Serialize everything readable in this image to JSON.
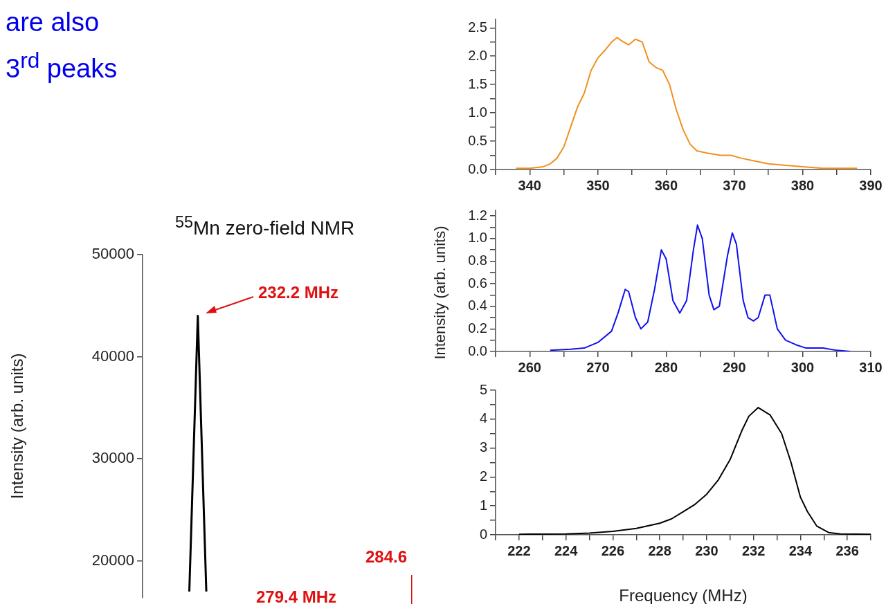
{
  "chart_data": [
    {
      "type": "line",
      "title": "$^{55}$Mn zero-field NMR",
      "ylabel": "Intensity (arb. units)",
      "categories": [
        null,
        null,
        null
      ],
      "series": [
        {
          "color": "#000000",
          "values": [
            17000,
            44000,
            17000
          ]
        }
      ],
      "ylim": [
        16400,
        50000
      ],
      "yticks": [
        20000,
        30000,
        40000,
        50000
      ],
      "tick_labels": "y",
      "annotations": [
        "232.2 MHz",
        "279.4 MHz",
        "284.6",
        "are also",
        "3$^{rd}$ peaks"
      ]
    },
    {
      "type": "line",
      "xlim": [
        335,
        390
      ],
      "ylim": [
        0,
        2.65
      ],
      "xticks": [
        {
          "value": 335,
          "label": null
        },
        340,
        {
          "value": 345,
          "label": null
        },
        350,
        {
          "value": 355,
          "label": null
        },
        360,
        {
          "value": 365,
          "label": null
        },
        370,
        {
          "value": 375,
          "label": null
        },
        380,
        {
          "value": 385,
          "label": null
        },
        390
      ],
      "yticks": [
        {
          "value": 0,
          "label": "0.0"
        },
        {
          "value": 0.25,
          "label": null
        },
        {
          "value": 0.5,
          "label": "0.5"
        },
        {
          "value": 0.75,
          "label": null
        },
        {
          "value": 1,
          "label": "1.0"
        },
        {
          "value": 1.25,
          "label": null
        },
        {
          "value": 1.5,
          "label": "1.5"
        },
        {
          "value": 1.75,
          "label": null
        },
        {
          "value": 2,
          "label": "2.0"
        },
        {
          "value": 2.25,
          "label": null
        },
        {
          "value": 2.5,
          "label": "2.5"
        }
      ],
      "series": [
        {
          "color": "#f0901e",
          "x": [
            338,
            340,
            342,
            343,
            344,
            345,
            346,
            347,
            348,
            349,
            350,
            351,
            352,
            352.8,
            353.5,
            354.5,
            355.5,
            356.5,
            357.5,
            358.5,
            359.5,
            360.5,
            361.5,
            362.5,
            363.5,
            364.5,
            366,
            368,
            369.5,
            371,
            373,
            375,
            377,
            380,
            383,
            386,
            388
          ],
          "values": [
            0.02,
            0.02,
            0.05,
            0.1,
            0.2,
            0.4,
            0.75,
            1.1,
            1.35,
            1.75,
            1.97,
            2.1,
            2.25,
            2.33,
            2.27,
            2.2,
            2.3,
            2.25,
            1.9,
            1.8,
            1.75,
            1.5,
            1.05,
            0.7,
            0.45,
            0.33,
            0.29,
            0.25,
            0.25,
            0.2,
            0.15,
            0.1,
            0.08,
            0.05,
            0.02,
            0.02,
            0.02
          ]
        }
      ]
    },
    {
      "type": "line",
      "ylabel": "Intensity (arb. units)",
      "xlim": [
        255,
        310
      ],
      "ylim": [
        0,
        1.25
      ],
      "xticks": [
        {
          "value": 255,
          "label": null
        },
        260,
        {
          "value": 265,
          "label": null
        },
        270,
        {
          "value": 275,
          "label": null
        },
        280,
        {
          "value": 285,
          "label": null
        },
        290,
        {
          "value": 295,
          "label": null
        },
        300,
        {
          "value": 305,
          "label": null
        },
        310
      ],
      "yticks": [
        {
          "value": 0,
          "label": "0.0"
        },
        {
          "value": 0.1,
          "label": null
        },
        {
          "value": 0.2,
          "label": "0.2"
        },
        {
          "value": 0.3,
          "label": null
        },
        {
          "value": 0.4,
          "label": "0.4"
        },
        {
          "value": 0.5,
          "label": null
        },
        {
          "value": 0.6,
          "label": "0.6"
        },
        {
          "value": 0.7,
          "label": null
        },
        {
          "value": 0.8,
          "label": "0.8"
        },
        {
          "value": 0.9,
          "label": null
        },
        {
          "value": 1,
          "label": "1.0"
        },
        {
          "value": 1.1,
          "label": null
        },
        {
          "value": 1.2,
          "label": "1.2"
        }
      ],
      "series": [
        {
          "color": "#1010f0",
          "x": [
            263,
            266,
            268,
            270,
            272,
            273,
            274,
            274.5,
            275.5,
            276.3,
            277.3,
            278.3,
            279.3,
            280,
            281,
            282,
            283,
            284,
            284.6,
            285.3,
            286.3,
            287,
            287.8,
            289,
            289.7,
            290.3,
            291.3,
            292,
            292.8,
            293.5,
            294.5,
            295.2,
            296.3,
            297.5,
            299,
            300.5,
            303,
            305,
            307
          ],
          "values": [
            0.01,
            0.02,
            0.03,
            0.08,
            0.18,
            0.35,
            0.55,
            0.53,
            0.3,
            0.2,
            0.26,
            0.55,
            0.9,
            0.82,
            0.45,
            0.34,
            0.45,
            0.9,
            1.12,
            1.0,
            0.5,
            0.37,
            0.4,
            0.85,
            1.05,
            0.95,
            0.45,
            0.3,
            0.27,
            0.3,
            0.5,
            0.5,
            0.2,
            0.1,
            0.06,
            0.03,
            0.03,
            0.01,
            0.0
          ]
        }
      ]
    },
    {
      "type": "line",
      "xlabel": "Frequency (MHz)",
      "xlim": [
        221,
        237
      ],
      "ylim": [
        0,
        5
      ],
      "xticks": [
        {
          "value": 221,
          "label": null
        },
        222,
        {
          "value": 223,
          "label": null
        },
        224,
        {
          "value": 225,
          "label": null
        },
        226,
        {
          "value": 227,
          "label": null
        },
        228,
        {
          "value": 229,
          "label": null
        },
        230,
        {
          "value": 231,
          "label": null
        },
        232,
        {
          "value": 233,
          "label": null
        },
        234,
        {
          "value": 235,
          "label": null
        },
        236,
        {
          "value": 237,
          "label": null
        }
      ],
      "yticks": [
        0,
        {
          "value": 0.5,
          "label": null
        },
        1,
        {
          "value": 1.5,
          "label": null
        },
        2,
        {
          "value": 2.5,
          "label": null
        },
        3,
        {
          "value": 3.5,
          "label": null
        },
        4,
        {
          "value": 4.5,
          "label": null
        },
        5
      ],
      "series": [
        {
          "color": "#000000",
          "x": [
            222,
            224,
            225,
            226,
            227,
            228,
            228.5,
            229,
            229.5,
            230,
            230.5,
            231,
            231.5,
            231.8,
            232.2,
            232.7,
            233.2,
            233.6,
            234,
            234.3,
            234.7,
            235.2,
            235.7,
            237
          ],
          "values": [
            0.02,
            0.03,
            0.06,
            0.12,
            0.22,
            0.4,
            0.55,
            0.8,
            1.05,
            1.4,
            1.9,
            2.6,
            3.6,
            4.1,
            4.4,
            4.15,
            3.5,
            2.5,
            1.3,
            0.8,
            0.3,
            0.08,
            0.03,
            0.02
          ]
        }
      ]
    }
  ]
}
